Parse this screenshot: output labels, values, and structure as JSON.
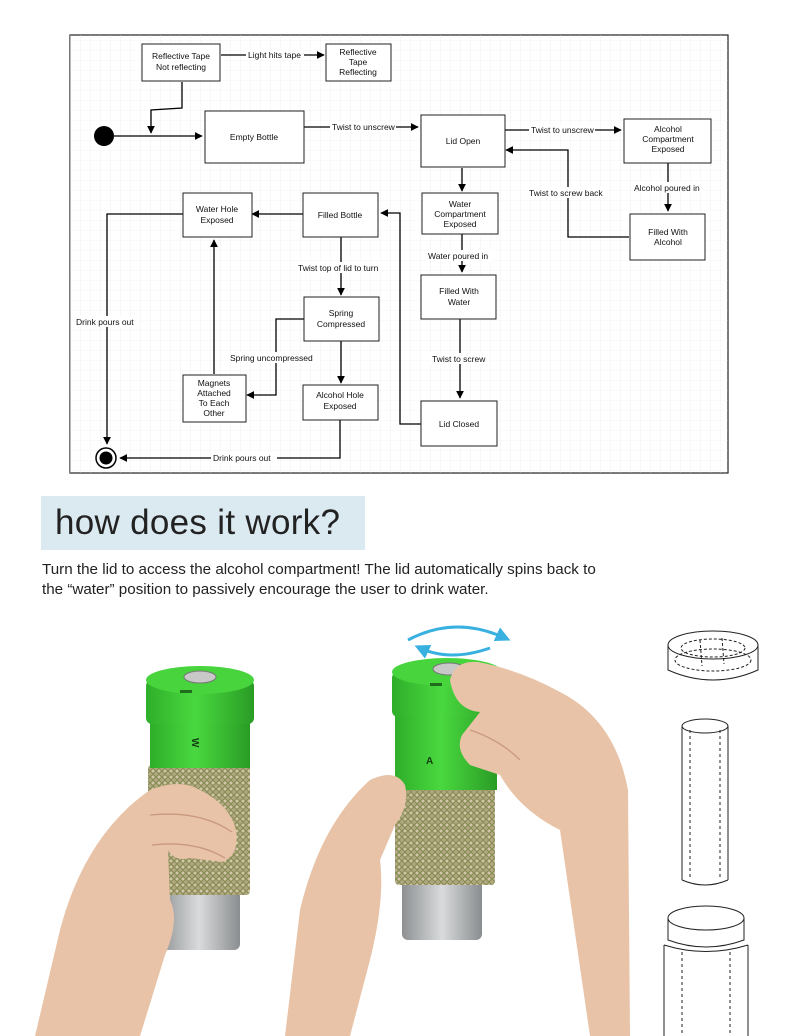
{
  "diagram": {
    "nodes": {
      "reflective_not": [
        "Reflective Tape",
        "Not reflecting"
      ],
      "reflective_yes": [
        "Reflective",
        "Tape",
        "Reflecting"
      ],
      "empty_bottle": [
        "Empty Bottle"
      ],
      "lid_open": [
        "Lid Open"
      ],
      "alcohol_compartment": [
        "Alcohol",
        "Compartment",
        "Exposed"
      ],
      "water_compartment": [
        "Water",
        "Compartment",
        "Exposed"
      ],
      "filled_alcohol": [
        "Filled With",
        "Alcohol"
      ],
      "filled_water": [
        "Filled With",
        "Water"
      ],
      "filled_bottle": [
        "Filled Bottle"
      ],
      "water_hole": [
        "Water Hole",
        "Exposed"
      ],
      "spring": [
        "Spring",
        "Compressed"
      ],
      "magnets": [
        "Magnets",
        "Attached",
        "To Each",
        "Other"
      ],
      "alcohol_hole": [
        "Alcohol Hole",
        "Exposed"
      ],
      "lid_closed": [
        "Lid Closed"
      ]
    },
    "edges": {
      "light_hits": "Light hits tape",
      "twist_unscrew_1": "Twist to unscrew",
      "twist_unscrew_2": "Twist to unscrew",
      "alcohol_poured": "Alcohol poured in",
      "twist_screw_back": "Twist to screw back",
      "water_poured": "Water poured in",
      "twist_screw": "Twist to screw",
      "twist_top": "Twist top of lid to turn",
      "spring_uncompressed": "Spring uncompressed",
      "drink_pours_left": "Drink pours out",
      "drink_pours_bottom": "Drink pours out"
    }
  },
  "section": {
    "heading": "how does it work?",
    "description": "Turn the lid to access the alcohol compartment! The lid automatically spins back to the “water” position to passively encourage the user to drink water."
  },
  "illustration": {
    "bottle_letter_left": "W",
    "bottle_letter_right": "A",
    "accent_color": "#39b1e0",
    "bottle_green": "#3ecf35",
    "sleeve_color": "#b4a884",
    "base_color": "#b9bbbd"
  }
}
